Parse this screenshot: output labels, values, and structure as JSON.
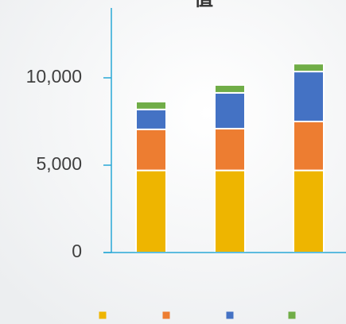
{
  "chart_data": {
    "type": "bar",
    "stacked": true,
    "title": "值",
    "categories": [
      null,
      null,
      null
    ],
    "series": [
      {
        "color": "#eeb500",
        "values": [
          4700,
          4700,
          4700
        ]
      },
      {
        "color": "#ed7d31",
        "values": [
          2350,
          2390,
          2800
        ]
      },
      {
        "color": "#4472c4",
        "values": [
          1140,
          2050,
          2860
        ]
      },
      {
        "color": "#70ad47",
        "values": [
          450,
          450,
          450
        ]
      }
    ],
    "ylim": [
      0,
      14000
    ],
    "yticks": [
      0,
      {
        "value": 5000,
        "label": "5,000"
      },
      {
        "value": 10000,
        "label": "10,000"
      }
    ],
    "grid": false,
    "legend": "bottom"
  }
}
